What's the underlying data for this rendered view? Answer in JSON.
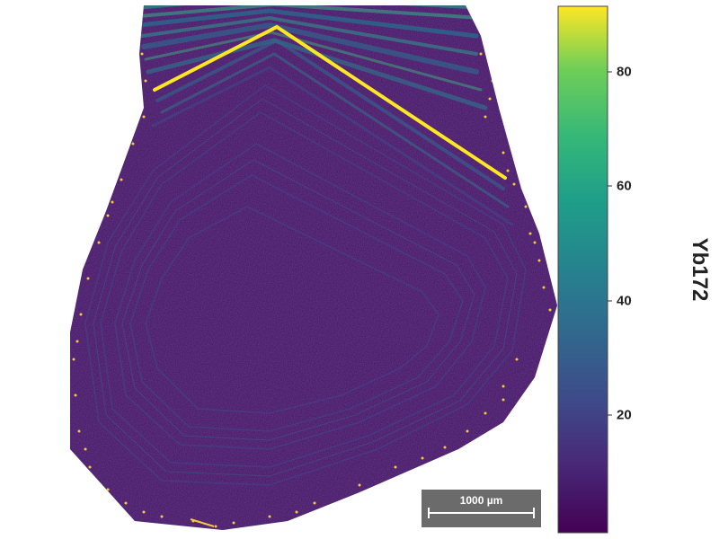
{
  "image": {
    "description": "Laser ablation element map of a zoned crystal",
    "colormap": "viridis",
    "background_color": "#ffffff"
  },
  "colorbar": {
    "title": "Yb172",
    "ticks": [
      {
        "value": 20,
        "label": "20"
      },
      {
        "value": 40,
        "label": "40"
      },
      {
        "value": 60,
        "label": "60"
      },
      {
        "value": 80,
        "label": "80"
      }
    ],
    "range": [
      0,
      92
    ]
  },
  "scalebar": {
    "label": "1000 µm"
  },
  "colors": {
    "low": "#440154",
    "mid": "#21918c",
    "high": "#fde725",
    "speckle": "#f5c842"
  }
}
